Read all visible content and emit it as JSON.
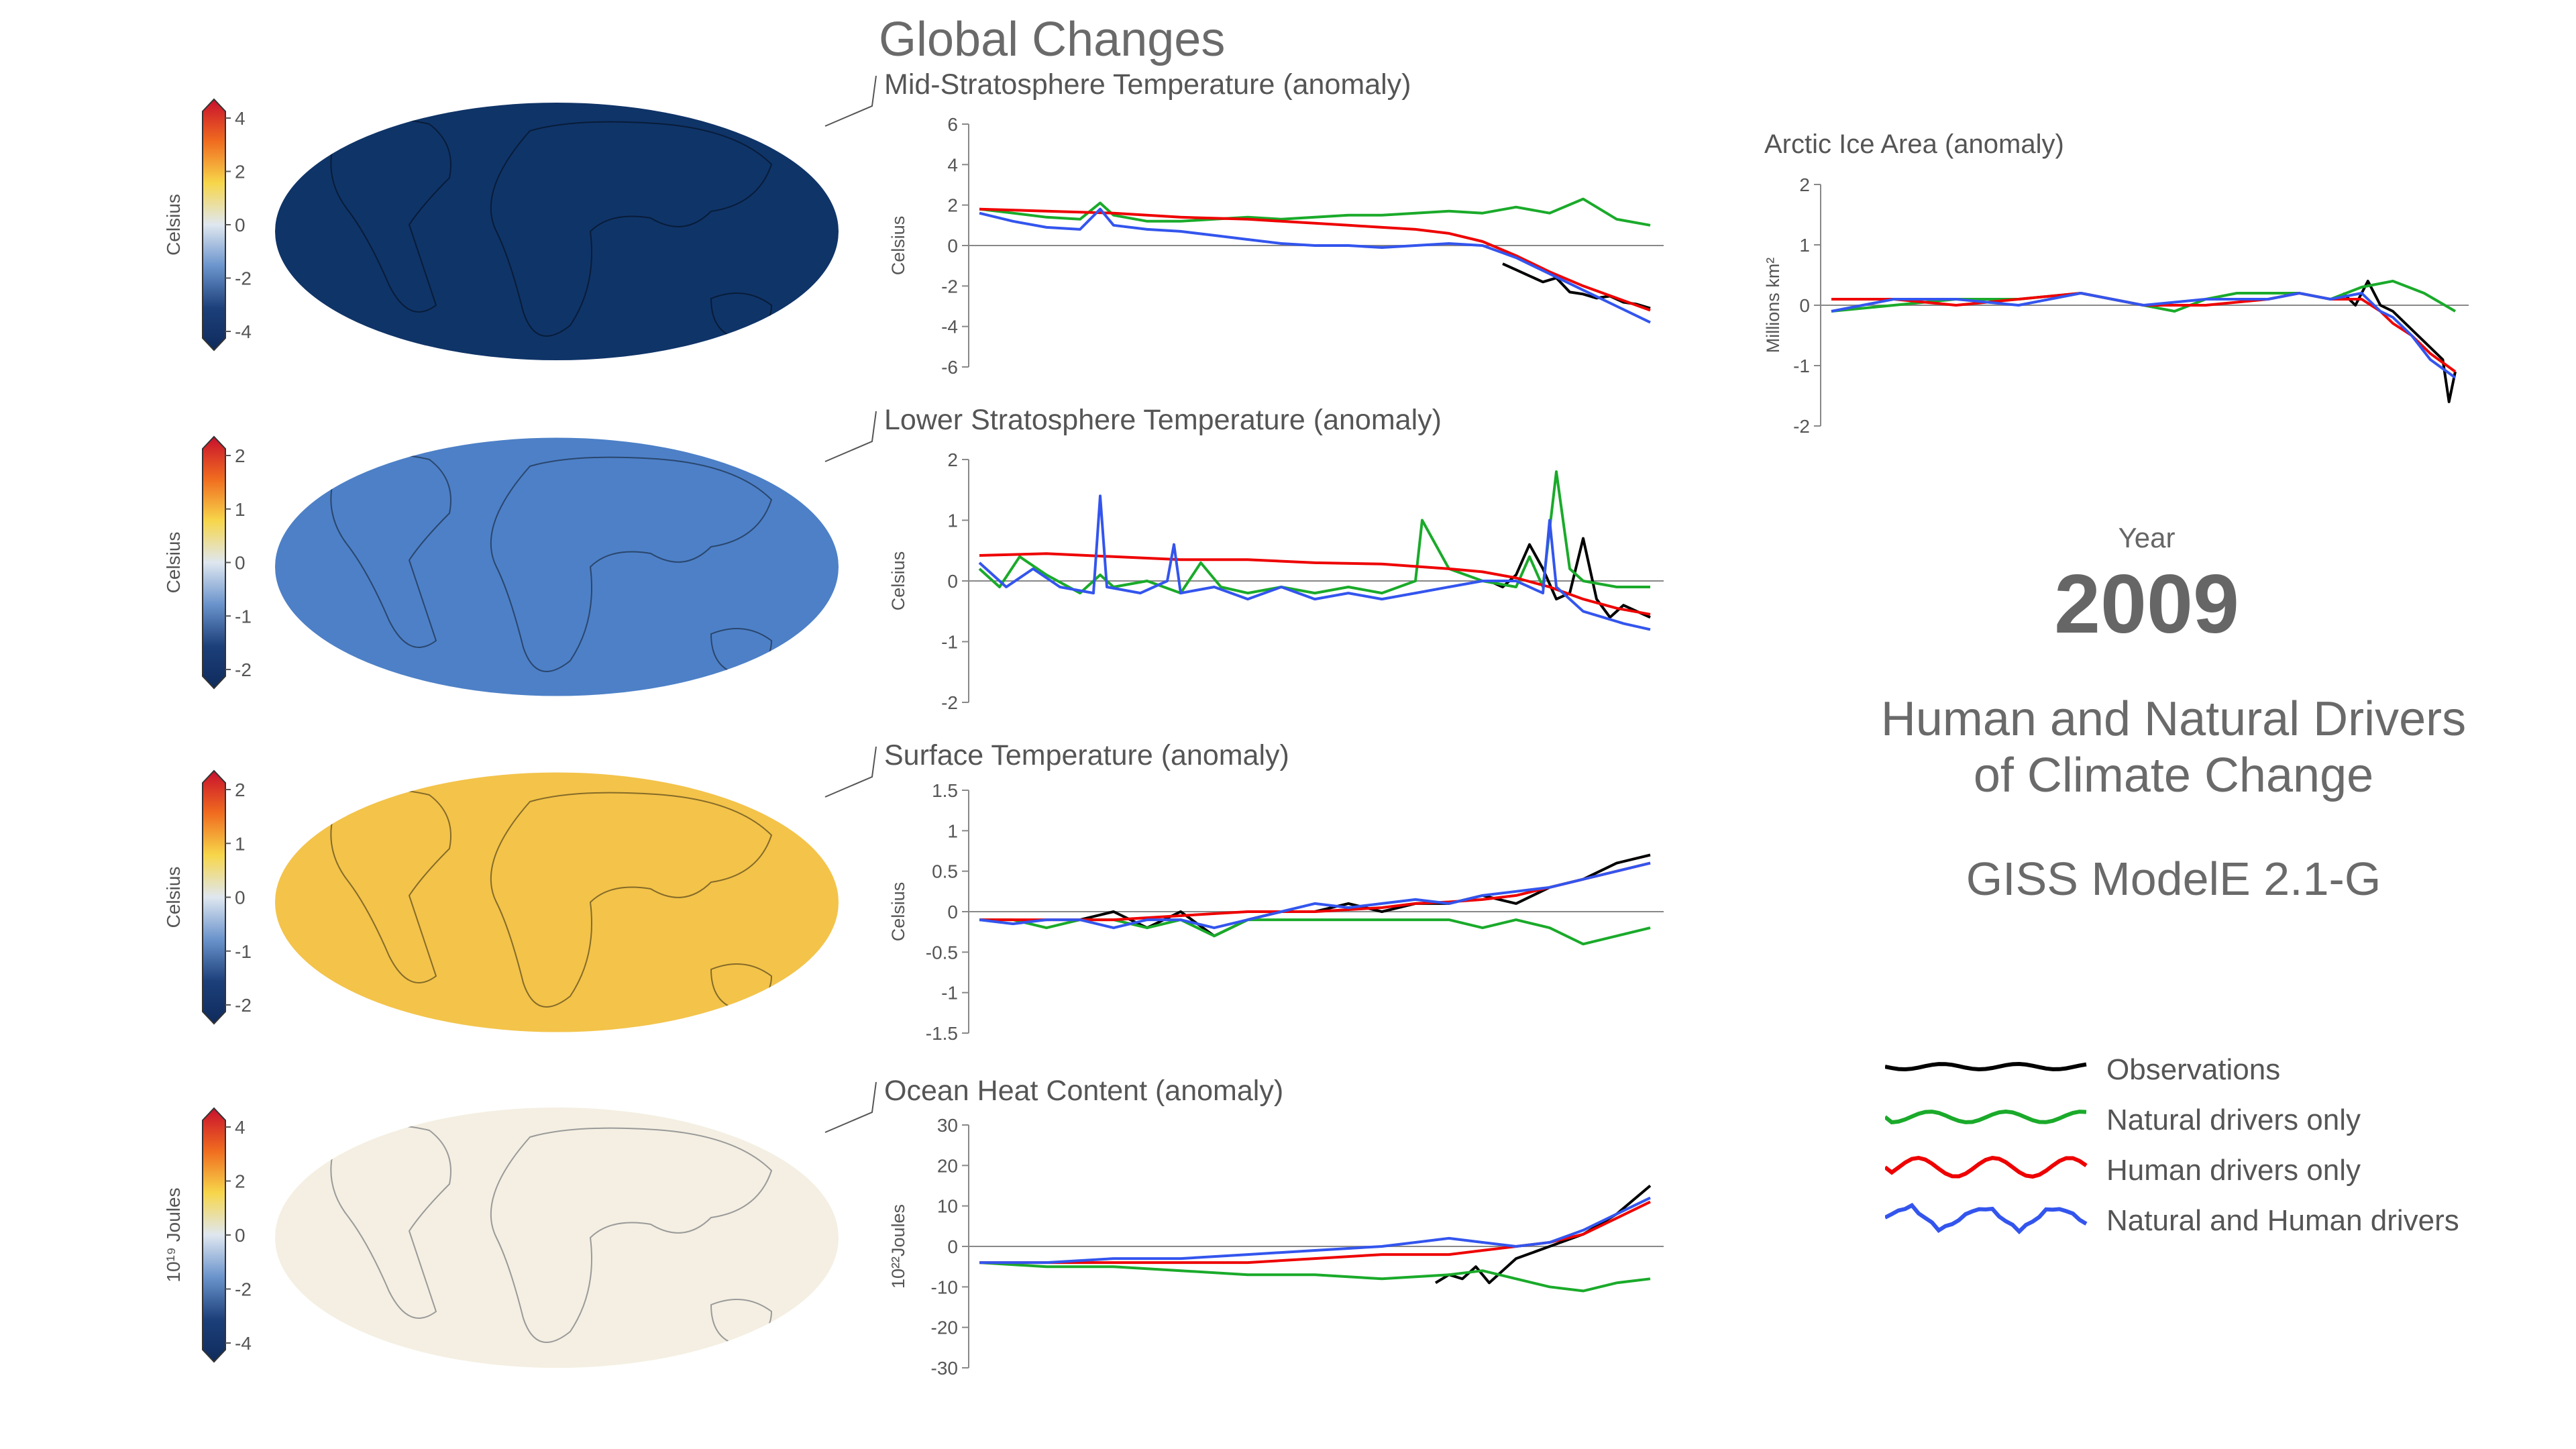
{
  "page": {
    "main_title": "Global Changes",
    "year_label": "Year",
    "year_value": "2009",
    "subtitle_line1": "Human and Natural Drivers",
    "subtitle_line2": "of Climate Change",
    "model": "GISS ModelE 2.1-G"
  },
  "colors": {
    "observations": "#000000",
    "natural": "#1aaa2a",
    "human": "#ee0000",
    "both": "#3355ee"
  },
  "legend": [
    {
      "key": "observations",
      "label": "Observations"
    },
    {
      "key": "natural",
      "label": "Natural drivers only"
    },
    {
      "key": "human",
      "label": "Human drivers only"
    },
    {
      "key": "both",
      "label": "Natural and Human drivers"
    }
  ],
  "maps": [
    {
      "unit": "Celsius",
      "ticks": [
        "4",
        "2",
        "0",
        "-2",
        "-4"
      ],
      "fill": "#0f3468"
    },
    {
      "unit": "Celsius",
      "ticks": [
        "2",
        "1",
        "0",
        "-1",
        "-2"
      ],
      "fill": "#4d80c7"
    },
    {
      "unit": "Celsius",
      "ticks": [
        "2",
        "1",
        "0",
        "-1",
        "-2"
      ],
      "fill": "#f3c34a"
    },
    {
      "unit": "10¹⁹ Joules",
      "ticks": [
        "4",
        "2",
        "0",
        "-2",
        "-4"
      ],
      "fill": "#f4efe2"
    }
  ],
  "chart_data": [
    {
      "type": "line",
      "title": "Mid-Stratosphere Temperature (anomaly)",
      "ylabel": "Celsius",
      "ylim": [
        -6,
        6
      ],
      "yticks": [
        "6",
        "4",
        "2",
        "0",
        "-2",
        "-4",
        "-6"
      ],
      "series": [
        {
          "name": "Observations",
          "color": "observations",
          "x": [
            0.78,
            0.8,
            0.82,
            0.84,
            0.86,
            0.88,
            0.9,
            0.92,
            0.94,
            0.96,
            0.98,
            1.0
          ],
          "values": [
            -0.9,
            -1.2,
            -1.5,
            -1.8,
            -1.6,
            -2.3,
            -2.4,
            -2.6,
            -2.5,
            -2.8,
            -2.9,
            -3.1
          ]
        },
        {
          "name": "Natural drivers only",
          "color": "natural",
          "x": [
            0,
            0.05,
            0.1,
            0.15,
            0.18,
            0.2,
            0.25,
            0.3,
            0.35,
            0.4,
            0.45,
            0.5,
            0.55,
            0.6,
            0.65,
            0.7,
            0.75,
            0.8,
            0.85,
            0.9,
            0.95,
            1.0
          ],
          "values": [
            1.8,
            1.6,
            1.4,
            1.3,
            2.1,
            1.5,
            1.2,
            1.2,
            1.3,
            1.4,
            1.3,
            1.4,
            1.5,
            1.5,
            1.6,
            1.7,
            1.6,
            1.9,
            1.6,
            2.3,
            1.3,
            1.0
          ]
        },
        {
          "name": "Human drivers only",
          "color": "human",
          "x": [
            0,
            0.1,
            0.2,
            0.3,
            0.4,
            0.5,
            0.55,
            0.6,
            0.65,
            0.7,
            0.75,
            0.8,
            0.85,
            0.9,
            0.95,
            1.0
          ],
          "values": [
            1.8,
            1.7,
            1.6,
            1.4,
            1.3,
            1.1,
            1.0,
            0.9,
            0.8,
            0.6,
            0.2,
            -0.5,
            -1.3,
            -2.0,
            -2.6,
            -3.2
          ]
        },
        {
          "name": "Natural and Human drivers",
          "color": "both",
          "x": [
            0,
            0.05,
            0.1,
            0.15,
            0.18,
            0.2,
            0.25,
            0.3,
            0.35,
            0.4,
            0.45,
            0.5,
            0.55,
            0.6,
            0.65,
            0.7,
            0.75,
            0.8,
            0.85,
            0.9,
            0.95,
            1.0
          ],
          "values": [
            1.6,
            1.2,
            0.9,
            0.8,
            1.8,
            1.0,
            0.8,
            0.7,
            0.5,
            0.3,
            0.1,
            0.0,
            0.0,
            -0.1,
            0.0,
            0.1,
            0.0,
            -0.6,
            -1.4,
            -2.2,
            -3.0,
            -3.8
          ]
        }
      ]
    },
    {
      "type": "line",
      "title": "Lower Stratosphere Temperature (anomaly)",
      "ylabel": "Celsius",
      "ylim": [
        -2,
        2
      ],
      "yticks": [
        "2",
        "1",
        "0",
        "-1",
        "-2"
      ],
      "series": [
        {
          "name": "Observations",
          "color": "observations",
          "x": [
            0.76,
            0.78,
            0.8,
            0.82,
            0.84,
            0.86,
            0.88,
            0.9,
            0.92,
            0.94,
            0.96,
            0.98,
            1.0
          ],
          "values": [
            0.0,
            -0.1,
            0.1,
            0.6,
            0.2,
            -0.3,
            -0.2,
            0.7,
            -0.3,
            -0.6,
            -0.4,
            -0.5,
            -0.6
          ]
        },
        {
          "name": "Natural drivers only",
          "color": "natural",
          "x": [
            0,
            0.03,
            0.06,
            0.1,
            0.15,
            0.18,
            0.2,
            0.25,
            0.3,
            0.33,
            0.36,
            0.4,
            0.45,
            0.5,
            0.55,
            0.6,
            0.65,
            0.66,
            0.7,
            0.75,
            0.8,
            0.82,
            0.84,
            0.86,
            0.88,
            0.9,
            0.95,
            1.0
          ],
          "values": [
            0.2,
            -0.1,
            0.4,
            0.1,
            -0.2,
            0.1,
            -0.1,
            0.0,
            -0.2,
            0.3,
            -0.1,
            -0.2,
            -0.1,
            -0.2,
            -0.1,
            -0.2,
            0.0,
            1.0,
            0.2,
            0.0,
            -0.1,
            0.4,
            -0.1,
            1.8,
            0.2,
            0.0,
            -0.1,
            -0.1
          ]
        },
        {
          "name": "Human drivers only",
          "color": "human",
          "x": [
            0,
            0.1,
            0.2,
            0.3,
            0.4,
            0.5,
            0.6,
            0.7,
            0.75,
            0.8,
            0.85,
            0.9,
            0.95,
            1.0
          ],
          "values": [
            0.42,
            0.45,
            0.4,
            0.35,
            0.35,
            0.3,
            0.28,
            0.2,
            0.15,
            0.05,
            -0.1,
            -0.3,
            -0.45,
            -0.55
          ]
        },
        {
          "name": "Natural and Human drivers",
          "color": "both",
          "x": [
            0,
            0.04,
            0.08,
            0.12,
            0.17,
            0.18,
            0.19,
            0.24,
            0.28,
            0.29,
            0.3,
            0.35,
            0.4,
            0.45,
            0.5,
            0.55,
            0.6,
            0.65,
            0.7,
            0.75,
            0.8,
            0.84,
            0.85,
            0.86,
            0.88,
            0.9,
            0.93,
            0.96,
            1.0
          ],
          "values": [
            0.3,
            -0.1,
            0.2,
            -0.1,
            -0.2,
            1.4,
            -0.1,
            -0.2,
            0.0,
            0.6,
            -0.2,
            -0.1,
            -0.3,
            -0.1,
            -0.3,
            -0.2,
            -0.3,
            -0.2,
            -0.1,
            0.0,
            0.0,
            -0.2,
            1.0,
            -0.1,
            -0.3,
            -0.5,
            -0.6,
            -0.7,
            -0.8
          ]
        }
      ]
    },
    {
      "type": "line",
      "title": "Surface Temperature (anomaly)",
      "ylabel": "Celsius",
      "ylim": [
        -1.5,
        1.5
      ],
      "yticks": [
        "1.5",
        "1",
        "0.5",
        "0",
        "-0.5",
        "-1",
        "-1.5"
      ],
      "series": [
        {
          "name": "Observations",
          "color": "observations",
          "x": [
            0.15,
            0.2,
            0.25,
            0.3,
            0.35,
            0.4,
            0.45,
            0.5,
            0.55,
            0.6,
            0.65,
            0.7,
            0.75,
            0.8,
            0.85,
            0.9,
            0.95,
            1.0
          ],
          "values": [
            -0.1,
            0.0,
            -0.2,
            0.0,
            -0.3,
            -0.1,
            0.0,
            0.0,
            0.1,
            0.0,
            0.1,
            0.1,
            0.2,
            0.1,
            0.3,
            0.4,
            0.6,
            0.7
          ]
        },
        {
          "name": "Natural drivers only",
          "color": "natural",
          "x": [
            0,
            0.05,
            0.1,
            0.15,
            0.2,
            0.25,
            0.3,
            0.35,
            0.4,
            0.45,
            0.5,
            0.55,
            0.6,
            0.65,
            0.7,
            0.75,
            0.8,
            0.85,
            0.9,
            0.95,
            1.0
          ],
          "values": [
            -0.1,
            -0.1,
            -0.2,
            -0.1,
            -0.1,
            -0.2,
            -0.1,
            -0.3,
            -0.1,
            -0.1,
            -0.1,
            -0.1,
            -0.1,
            -0.1,
            -0.1,
            -0.2,
            -0.1,
            -0.2,
            -0.4,
            -0.3,
            -0.2
          ]
        },
        {
          "name": "Human drivers only",
          "color": "human",
          "x": [
            0,
            0.1,
            0.2,
            0.3,
            0.4,
            0.5,
            0.6,
            0.65,
            0.7,
            0.75,
            0.8,
            0.85,
            0.9,
            0.95,
            1.0
          ],
          "values": [
            -0.1,
            -0.1,
            -0.1,
            -0.05,
            0.0,
            0.0,
            0.05,
            0.1,
            0.12,
            0.15,
            0.2,
            0.3,
            0.4,
            0.5,
            0.6
          ]
        },
        {
          "name": "Natural and Human drivers",
          "color": "both",
          "x": [
            0,
            0.05,
            0.1,
            0.15,
            0.2,
            0.25,
            0.3,
            0.35,
            0.4,
            0.45,
            0.5,
            0.55,
            0.6,
            0.65,
            0.7,
            0.75,
            0.8,
            0.85,
            0.9,
            0.95,
            1.0
          ],
          "values": [
            -0.1,
            -0.15,
            -0.1,
            -0.1,
            -0.2,
            -0.1,
            -0.1,
            -0.2,
            -0.1,
            0.0,
            0.1,
            0.05,
            0.1,
            0.15,
            0.1,
            0.2,
            0.25,
            0.3,
            0.4,
            0.5,
            0.6
          ]
        }
      ]
    },
    {
      "type": "line",
      "title": "Ocean Heat Content (anomaly)",
      "ylabel": "10²²Joules",
      "ylim": [
        -30,
        30
      ],
      "yticks": [
        "30",
        "20",
        "10",
        "0",
        "-10",
        "-20",
        "-30"
      ],
      "series": [
        {
          "name": "Observations",
          "color": "observations",
          "x": [
            0.68,
            0.7,
            0.72,
            0.74,
            0.76,
            0.78,
            0.8,
            0.85,
            0.9,
            0.95,
            1.0
          ],
          "values": [
            -9,
            -7,
            -8,
            -5,
            -9,
            -6,
            -3,
            0,
            3,
            8,
            15
          ]
        },
        {
          "name": "Natural drivers only",
          "color": "natural",
          "x": [
            0,
            0.1,
            0.2,
            0.3,
            0.4,
            0.5,
            0.6,
            0.7,
            0.75,
            0.8,
            0.85,
            0.9,
            0.95,
            1.0
          ],
          "values": [
            -4,
            -5,
            -5,
            -6,
            -7,
            -7,
            -8,
            -7,
            -6,
            -8,
            -10,
            -11,
            -9,
            -8
          ]
        },
        {
          "name": "Human drivers only",
          "color": "human",
          "x": [
            0,
            0.1,
            0.2,
            0.3,
            0.4,
            0.5,
            0.6,
            0.7,
            0.75,
            0.8,
            0.85,
            0.9,
            0.95,
            1.0
          ],
          "values": [
            -4,
            -4,
            -4,
            -4,
            -4,
            -3,
            -2,
            -2,
            -1,
            0,
            1,
            3,
            7,
            11
          ]
        },
        {
          "name": "Natural and Human drivers",
          "color": "both",
          "x": [
            0,
            0.1,
            0.2,
            0.3,
            0.4,
            0.5,
            0.6,
            0.65,
            0.7,
            0.75,
            0.8,
            0.85,
            0.9,
            0.95,
            1.0
          ],
          "values": [
            -4,
            -4,
            -3,
            -3,
            -2,
            -1,
            0,
            1,
            2,
            1,
            0,
            1,
            4,
            8,
            12
          ]
        }
      ]
    },
    {
      "type": "line",
      "title": "Arctic Ice Area (anomaly)",
      "ylabel": "Millions km²",
      "ylim": [
        -2,
        2
      ],
      "yticks": [
        "2",
        "1",
        "0",
        "-1",
        "-2"
      ],
      "series": [
        {
          "name": "Observations",
          "color": "observations",
          "x": [
            0.82,
            0.84,
            0.86,
            0.88,
            0.9,
            0.92,
            0.94,
            0.96,
            0.98,
            0.99,
            1.0
          ],
          "values": [
            0.2,
            0.0,
            0.4,
            0.0,
            -0.1,
            -0.3,
            -0.5,
            -0.7,
            -0.9,
            -1.6,
            -1.1
          ]
        },
        {
          "name": "Natural drivers only",
          "color": "natural",
          "x": [
            0,
            0.1,
            0.2,
            0.3,
            0.4,
            0.5,
            0.55,
            0.6,
            0.65,
            0.7,
            0.75,
            0.8,
            0.85,
            0.9,
            0.95,
            1.0
          ],
          "values": [
            -0.1,
            0.0,
            0.1,
            0.1,
            0.2,
            0.0,
            -0.1,
            0.1,
            0.2,
            0.2,
            0.2,
            0.1,
            0.3,
            0.4,
            0.2,
            -0.1
          ]
        },
        {
          "name": "Human drivers only",
          "color": "human",
          "x": [
            0,
            0.1,
            0.2,
            0.3,
            0.4,
            0.5,
            0.6,
            0.7,
            0.75,
            0.8,
            0.85,
            0.88,
            0.9,
            0.93,
            0.96,
            1.0
          ],
          "values": [
            0.1,
            0.1,
            0.0,
            0.1,
            0.2,
            0.0,
            0.0,
            0.1,
            0.2,
            0.1,
            0.1,
            -0.1,
            -0.3,
            -0.5,
            -0.8,
            -1.1
          ]
        },
        {
          "name": "Natural and Human drivers",
          "color": "both",
          "x": [
            0,
            0.1,
            0.2,
            0.3,
            0.4,
            0.5,
            0.6,
            0.7,
            0.75,
            0.8,
            0.85,
            0.88,
            0.9,
            0.93,
            0.96,
            1.0
          ],
          "values": [
            -0.1,
            0.1,
            0.1,
            0.0,
            0.2,
            0.0,
            0.1,
            0.1,
            0.2,
            0.1,
            0.2,
            -0.1,
            -0.2,
            -0.5,
            -0.9,
            -1.2
          ]
        }
      ]
    }
  ]
}
